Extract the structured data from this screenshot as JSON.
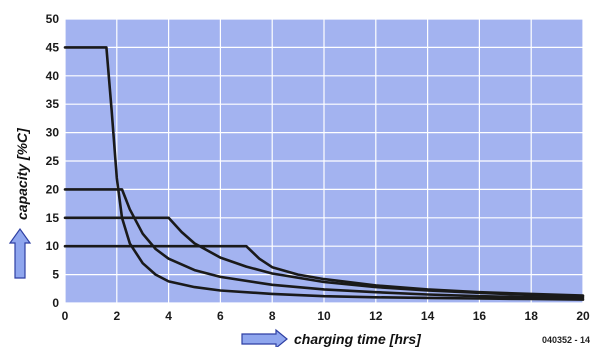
{
  "chart_data": {
    "type": "line",
    "title": "",
    "xlabel": "charging time [hrs]",
    "ylabel": "capacity [%C]",
    "xlim": [
      0,
      20
    ],
    "ylim": [
      0,
      50
    ],
    "x_ticks": [
      0,
      2,
      4,
      6,
      8,
      10,
      12,
      14,
      16,
      18,
      20
    ],
    "y_ticks": [
      0,
      5,
      10,
      15,
      20,
      25,
      30,
      35,
      40,
      45,
      50
    ],
    "grid": true,
    "legend": "none",
    "figure_code": "040352 - 14",
    "colors": {
      "plot_background": "#a3b3f0",
      "grid": "#ffffff",
      "line": "#1a1a1a",
      "arrow_fill": "#8fa6ee",
      "arrow_stroke": "#2e3fa3"
    },
    "series": [
      {
        "x": [
          0,
          1.6,
          1.8,
          2.0,
          2.2,
          2.5,
          3.0,
          3.5,
          4.0,
          5.0,
          6.0,
          8.0,
          10.0,
          12.0,
          14.0,
          16.0,
          18.0,
          20.0
        ],
        "y": [
          45,
          45,
          34,
          22,
          15,
          10.5,
          7,
          5,
          3.8,
          2.8,
          2.2,
          1.6,
          1.2,
          1.0,
          0.9,
          0.8,
          0.7,
          0.6
        ]
      },
      {
        "x": [
          0,
          2.2,
          2.5,
          3.0,
          3.5,
          4.0,
          5.0,
          6.0,
          8.0,
          10.0,
          12.0,
          14.0,
          16.0,
          18.0,
          20.0
        ],
        "y": [
          20,
          20,
          16.5,
          12.2,
          9.5,
          7.8,
          5.8,
          4.6,
          3.2,
          2.4,
          1.9,
          1.5,
          1.2,
          1.0,
          0.9
        ]
      },
      {
        "x": [
          0,
          4.0,
          4.5,
          5.0,
          6.0,
          7.0,
          8.0,
          10.0,
          12.0,
          14.0,
          16.0,
          18.0,
          20.0
        ],
        "y": [
          15,
          15,
          12.5,
          10.5,
          8.0,
          6.4,
          5.2,
          3.7,
          2.8,
          2.2,
          1.8,
          1.4,
          1.2
        ]
      },
      {
        "x": [
          0,
          7.0,
          7.5,
          8.0,
          9.0,
          10.0,
          12.0,
          14.0,
          16.0,
          18.0,
          20.0
        ],
        "y": [
          10,
          10,
          7.8,
          6.3,
          5.0,
          4.2,
          3.1,
          2.4,
          1.9,
          1.6,
          1.3
        ]
      }
    ]
  }
}
